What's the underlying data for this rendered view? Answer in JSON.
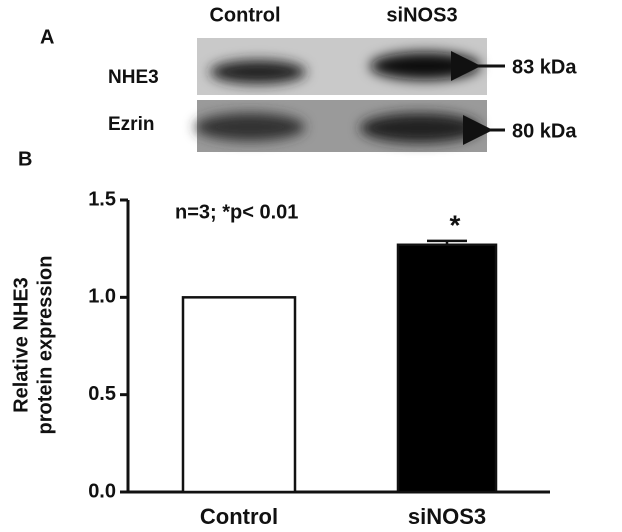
{
  "blot": {
    "label": "A",
    "lanes": [
      "Control",
      "siNOS3"
    ],
    "rows": [
      {
        "name": "NHE3",
        "size": "83 kDa"
      },
      {
        "name": "Ezrin",
        "size": "80 kDa"
      }
    ]
  },
  "chart_data": {
    "type": "bar",
    "panel_label": "B",
    "annotation": "n=3; *p< 0.01",
    "y_label": [
      "Relative NHE3",
      "protein expression"
    ],
    "categories": [
      "Control",
      "siNOS3"
    ],
    "values": [
      1.0,
      1.27
    ],
    "errors": [
      null,
      0.02
    ],
    "markers": [
      null,
      "*"
    ],
    "colors": [
      "#ffffff",
      "#000000"
    ],
    "ylim": [
      0,
      1.5
    ],
    "yticks": [
      {
        "value": 0,
        "label": "0.0"
      },
      0.5,
      {
        "value": 1,
        "label": "1.0"
      },
      1.5
    ]
  }
}
